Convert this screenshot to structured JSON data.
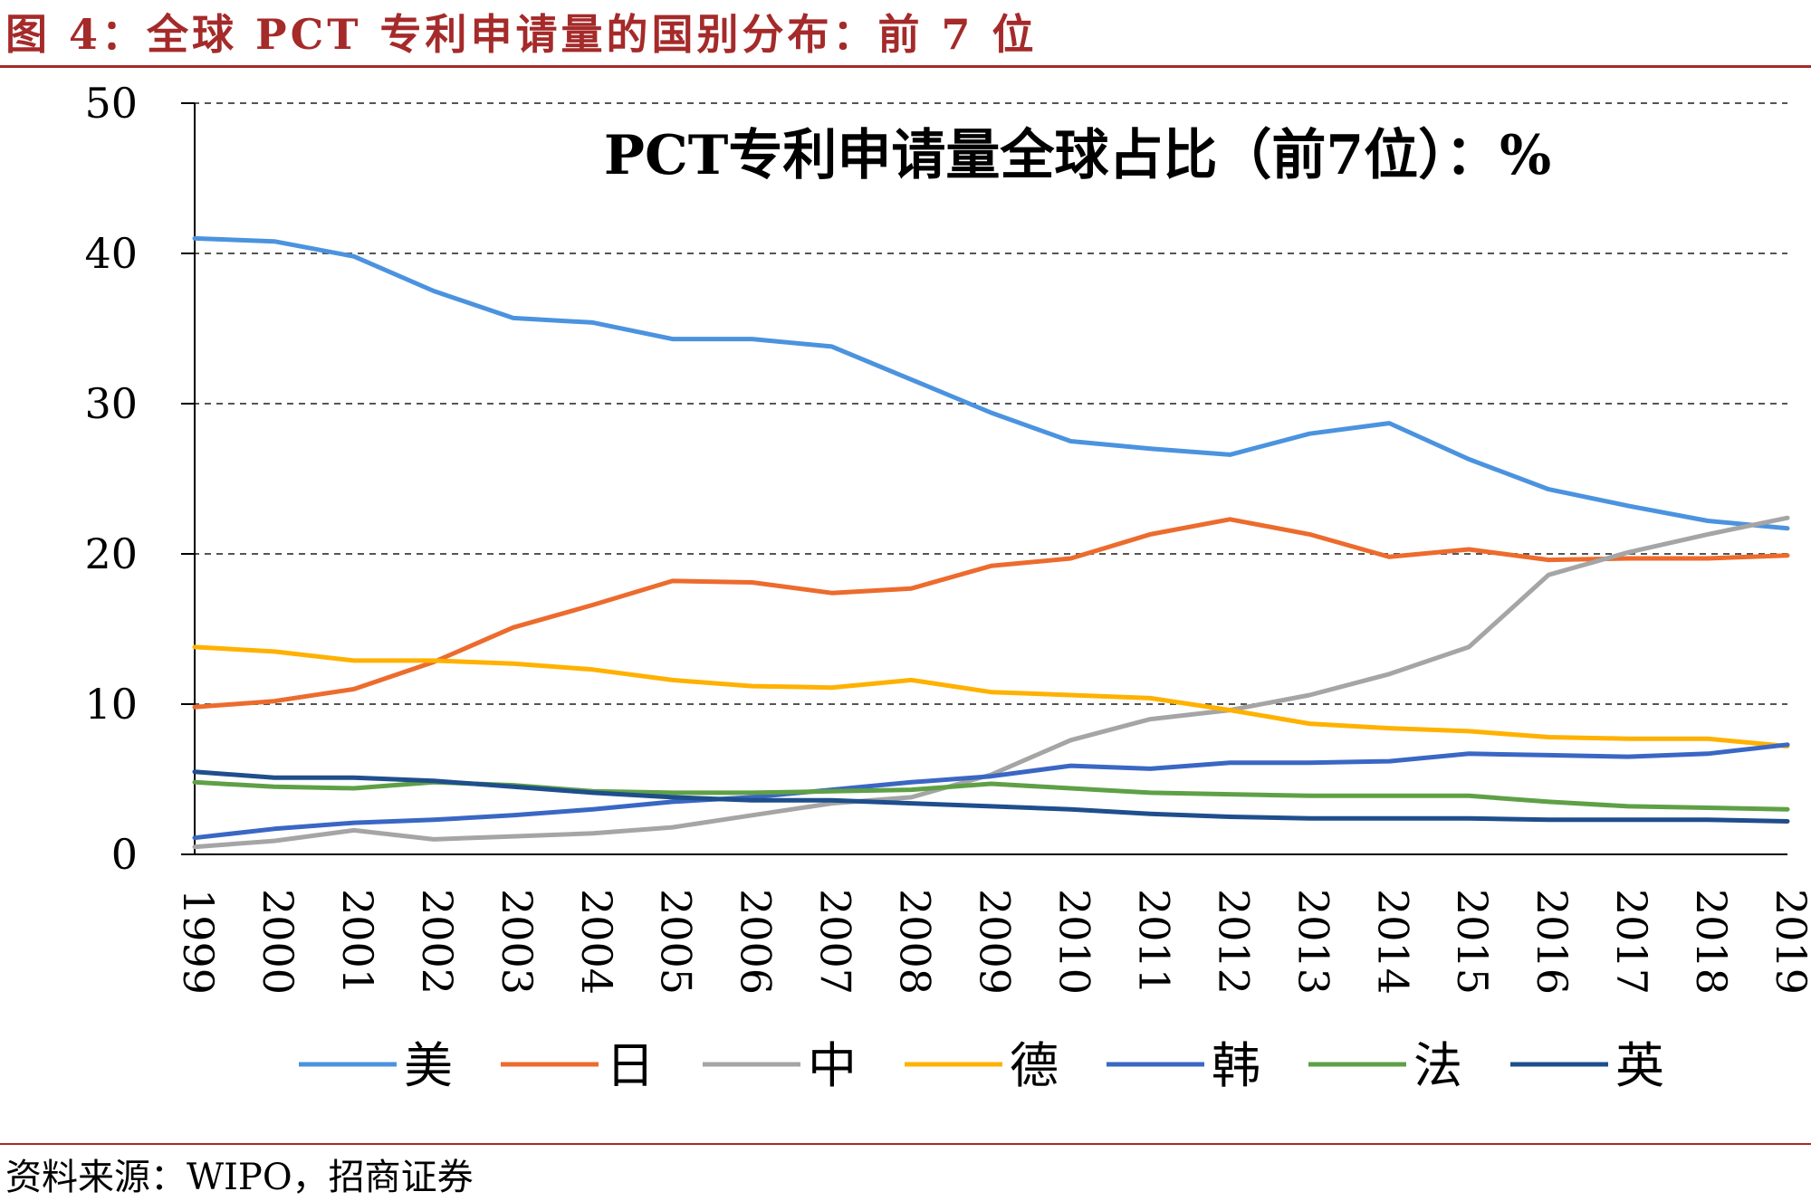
{
  "figure_title": "图 4：全球 PCT 专利申请量的国别分布：前 7 位",
  "source": "资料来源：WIPO，招商证券",
  "chart_data": {
    "type": "line",
    "title": "PCT专利申请量全球占比（前7位）：%",
    "xlabel": "",
    "ylabel": "",
    "ylim": [
      0,
      50
    ],
    "yticks": [
      0,
      10,
      20,
      30,
      40,
      50
    ],
    "grid": true,
    "legend_position": "bottom",
    "categories": [
      "1999",
      "2000",
      "2001",
      "2002",
      "2003",
      "2004",
      "2005",
      "2006",
      "2007",
      "2008",
      "2009",
      "2010",
      "2011",
      "2012",
      "2013",
      "2014",
      "2015",
      "2016",
      "2017",
      "2018",
      "2019"
    ],
    "series": [
      {
        "name": "美",
        "color": "#4b93df",
        "values": [
          41.0,
          40.8,
          39.8,
          37.5,
          35.7,
          35.4,
          34.3,
          34.3,
          33.8,
          31.6,
          29.4,
          27.5,
          27.0,
          26.6,
          28.0,
          28.7,
          26.3,
          24.3,
          23.2,
          22.2,
          21.7
        ]
      },
      {
        "name": "日",
        "color": "#ec6b2d",
        "values": [
          9.8,
          10.2,
          11.0,
          12.8,
          15.1,
          16.6,
          18.2,
          18.1,
          17.4,
          17.7,
          19.2,
          19.7,
          21.3,
          22.3,
          21.3,
          19.8,
          20.3,
          19.6,
          19.7,
          19.7,
          19.9
        ]
      },
      {
        "name": "中",
        "color": "#a5a5a5",
        "values": [
          0.5,
          0.9,
          1.6,
          1.0,
          1.2,
          1.4,
          1.8,
          2.6,
          3.4,
          3.8,
          5.3,
          7.6,
          9.0,
          9.6,
          10.6,
          12.0,
          13.8,
          18.6,
          20.1,
          21.3,
          22.4
        ]
      },
      {
        "name": "德",
        "color": "#ffb100",
        "values": [
          13.8,
          13.5,
          12.9,
          12.9,
          12.7,
          12.3,
          11.6,
          11.2,
          11.1,
          11.6,
          10.8,
          10.6,
          10.4,
          9.6,
          8.7,
          8.4,
          8.2,
          7.8,
          7.7,
          7.7,
          7.2
        ]
      },
      {
        "name": "韩",
        "color": "#3a67c4",
        "values": [
          1.1,
          1.7,
          2.1,
          2.3,
          2.6,
          3.0,
          3.5,
          3.8,
          4.3,
          4.8,
          5.2,
          5.9,
          5.7,
          6.1,
          6.1,
          6.2,
          6.7,
          6.6,
          6.5,
          6.7,
          7.3
        ]
      },
      {
        "name": "法",
        "color": "#5fa046",
        "values": [
          4.8,
          4.5,
          4.4,
          4.8,
          4.6,
          4.2,
          4.1,
          4.1,
          4.2,
          4.3,
          4.7,
          4.4,
          4.1,
          4.0,
          3.9,
          3.9,
          3.9,
          3.5,
          3.2,
          3.1,
          3.0
        ]
      },
      {
        "name": "英",
        "color": "#1f4e8c",
        "values": [
          5.5,
          5.1,
          5.1,
          4.9,
          4.5,
          4.1,
          3.8,
          3.6,
          3.6,
          3.4,
          3.2,
          3.0,
          2.7,
          2.5,
          2.4,
          2.4,
          2.4,
          2.3,
          2.3,
          2.3,
          2.2
        ]
      }
    ]
  }
}
